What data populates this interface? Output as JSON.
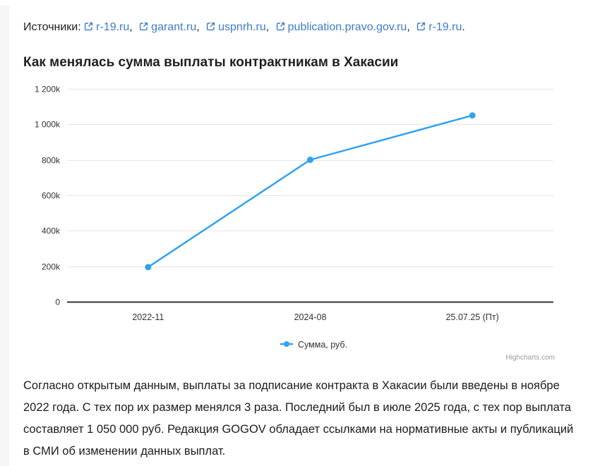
{
  "colors": {
    "accent_blue": "#2fa3f0",
    "link_blue": "#3d7cc9",
    "grid": "#e6e6e6",
    "axis": "#333333",
    "muted": "#9a9a9a",
    "gutter": "#f5f5f6"
  },
  "sources": {
    "label": "Источники:",
    "separator": ",",
    "terminator": ".",
    "links": [
      "r-19.ru",
      "garant.ru",
      "uspnrh.ru",
      "publication.pravo.gov.ru",
      "r-19.ru"
    ]
  },
  "heading": "Как менялась сумма выплаты контрактникам в Хакасии",
  "chart_data": {
    "type": "line",
    "title": "Как менялась сумма выплаты контрактникам в Хакасии",
    "categories": [
      "2022-11",
      "2024-08",
      "25.07.25 (Пт)"
    ],
    "series": [
      {
        "name": "Сумма, руб.",
        "color": "#2fa3f0",
        "values": [
          195000,
          800000,
          1050000
        ]
      }
    ],
    "xlabel": "",
    "ylabel": "",
    "ylim": [
      0,
      1200000
    ],
    "ytick_interval": 200000,
    "ytick_labels": [
      "0",
      "200k",
      "400k",
      "600k",
      "800k",
      "1 000k",
      "1 200k"
    ],
    "grid": true,
    "legend_position": "bottom-center",
    "credits": "Highcharts.com"
  },
  "article": {
    "text": "Согласно открытым данным, выплаты за подписание контракта в Хакасии были введены в ноябре 2022 года. С тех пор их размер менялся 3 раза. Последний был в июле 2025 года, с тех пор выплата составляет 1 050 000 руб. Редакция GOGOV обладает ссылками на нормативные акты и публикаций в СМИ об изменении данных выплат."
  }
}
